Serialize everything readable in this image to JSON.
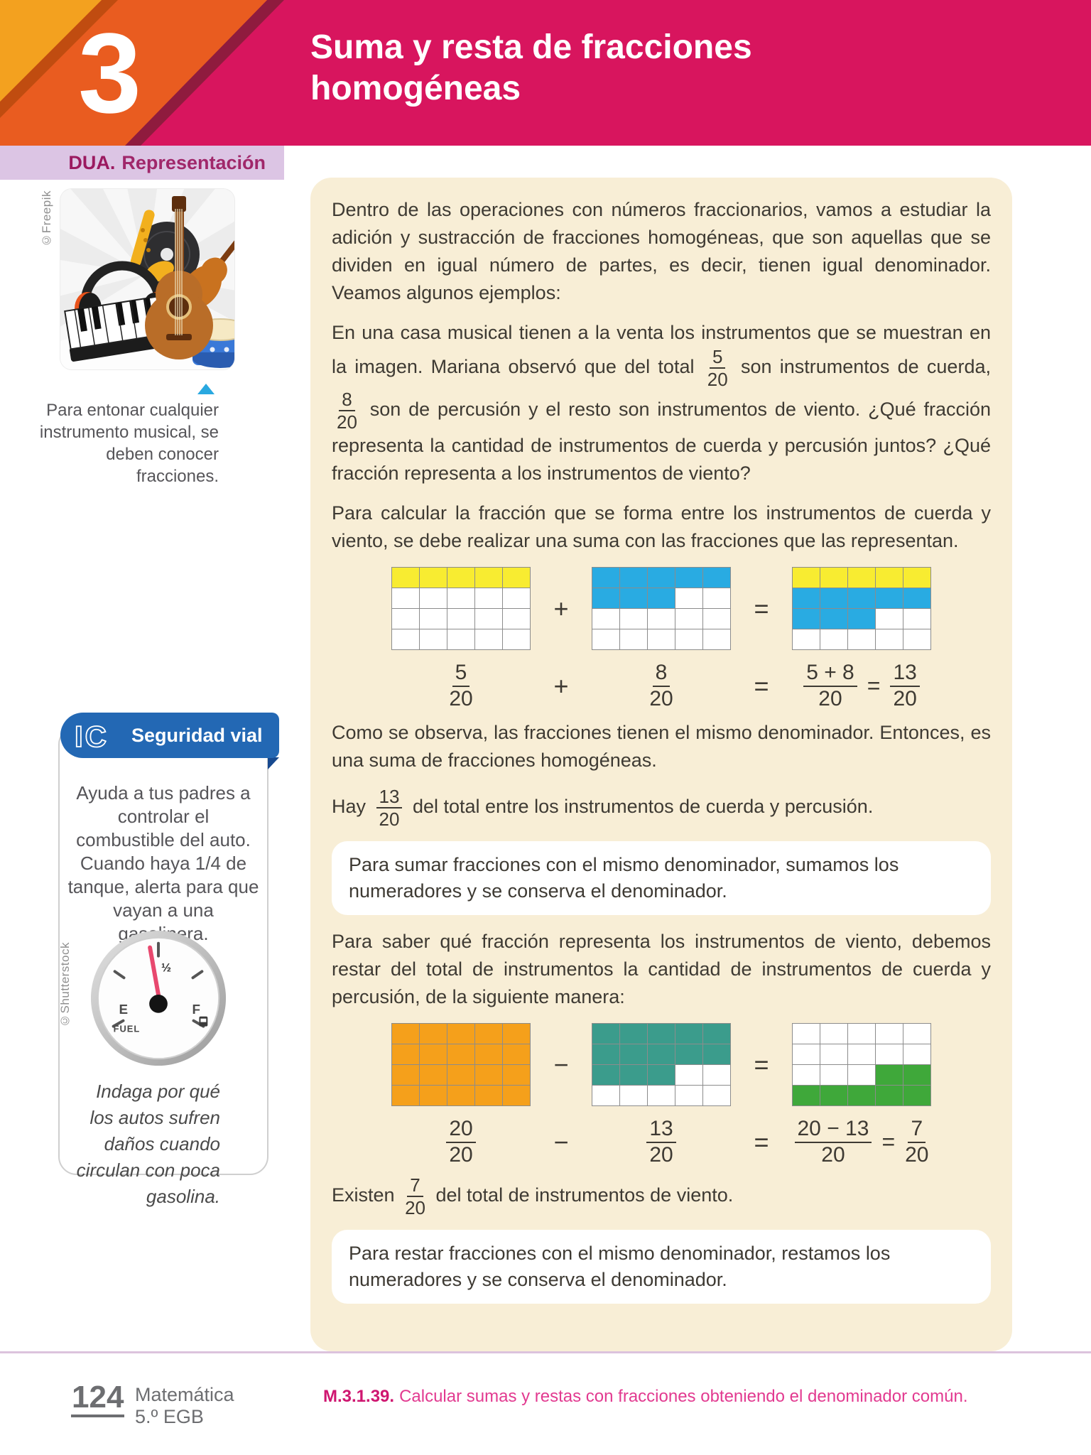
{
  "header": {
    "chapter_number": "3",
    "title_line1": "Suma y resta de fracciones",
    "title_line2": "homogéneas"
  },
  "dua": {
    "label_bold": "DUA.",
    "label_rest": "Representación"
  },
  "sidebar": {
    "image_credit": "©Freepik",
    "image_caption": "Para entonar cualquier instrumento musical, se deben conocer fracciones.",
    "seguridad": {
      "logo": "IC",
      "title": "Seguridad vial",
      "body": "Ayuda a tus padres a controlar el combustible del auto. Cuando haya 1/4 de tanque, alerta para que vayan a una gasolinera.",
      "gauge_credit": "©Shutterstock",
      "gauge": {
        "half_label": "½",
        "empty_label": "E",
        "full_label": "F",
        "fuel_label": "FUEL"
      },
      "prompt": "Indaga por qué los autos sufren daños cuando circulan con poca gasolina."
    }
  },
  "content": {
    "para1": "Dentro de las operaciones con números fraccionarios, vamos a estudiar la adición y sustracción de fracciones homogéneas, que son aquellas que se dividen en igual número de partes, es decir, tienen igual denominador. Veamos algunos ejemplos:",
    "para2_a": "En una casa musical tienen a la venta los instrumentos que se muestran en la imagen. Mariana observó que del total",
    "para2_b": "son instrumentos de cuerda,",
    "para2_c": "son de percusión y el resto son instrumentos de viento. ¿Qué fracción representa la cantidad de instrumentos de cuerda y percusión juntos? ¿Qué fracción representa a los instrumentos de viento?",
    "para3": "Para calcular la fracción que se forma entre los instrumentos de cuerda y viento, se debe realizar una suma con las fracciones que las representan.",
    "para4": "Como se observa, las fracciones tienen el mismo denominador. Entonces, es una suma de fracciones homogéneas.",
    "para5_a": "Hay",
    "para5_b": "del total entre los instrumentos de cuerda y percusión.",
    "note_sum": "Para sumar fracciones con el mismo denominador, sumamos los numeradores y se conserva el denominador.",
    "para6": "Para saber qué fracción representa los instrumentos de viento, debemos restar del total de instrumentos la cantidad de instrumentos de cuerda y percusión, de la siguiente manera:",
    "para7_a": "Existen",
    "para7_b": "del total de instrumentos de viento.",
    "note_diff": "Para restar fracciones con el mismo denominador, restamos los numeradores y se conserva el denominador."
  },
  "fractions": {
    "f5_20": {
      "num": "5",
      "den": "20"
    },
    "f8_20": {
      "num": "8",
      "den": "20"
    },
    "f13_20": {
      "num": "13",
      "den": "20"
    },
    "f20_20": {
      "num": "20",
      "den": "20"
    },
    "f7_20": {
      "num": "7",
      "den": "20"
    },
    "sum_expr": {
      "num": "5 + 8",
      "den": "20"
    },
    "diff_expr": {
      "num": "20 − 13",
      "den": "20"
    }
  },
  "sum_diagram": {
    "operator": "+",
    "equals": "=",
    "grid_first": {
      "rows": [
        "yyyyy",
        "wwwww",
        "wwwww",
        "wwwww"
      ]
    },
    "grid_second": {
      "rows": [
        "bbbbb",
        "bbbww",
        "wwwww",
        "wwwww"
      ]
    },
    "grid_result": {
      "rows": [
        "yyyyy",
        "bbbbb",
        "bbbww",
        "wwwww"
      ]
    }
  },
  "diff_diagram": {
    "operator": "−",
    "equals": "=",
    "grid_first": {
      "rows": [
        "ooooo",
        "ooooo",
        "ooooo",
        "ooooo"
      ]
    },
    "grid_second": {
      "rows": [
        "ttttt",
        "ttttt",
        "tttww",
        "wwwww"
      ]
    },
    "grid_result": {
      "rows": [
        "wwwww",
        "wwwww",
        "wwwgg",
        "ggggg"
      ]
    }
  },
  "diagram_colors": {
    "y": "#f8ec31",
    "b": "#29abe2",
    "o": "#f5a01b",
    "t": "#3b9c8c",
    "g": "#3fa83a",
    "w": "#ffffff"
  },
  "colors": {
    "header_pink": "#d8155e",
    "orange_light": "#f3a11f",
    "orange_dark": "#e95c20",
    "dua_bar": "#dcc5e4",
    "panel_cream": "#f8eed6",
    "ribbon_blue": "#2368b4",
    "needle_red": "#e8486e",
    "footer_magenta": "#cf1670"
  },
  "footer": {
    "page_number": "124",
    "book_line1": "Matemática",
    "book_line2": "5.º EGB",
    "standard_code": "M.3.1.39.",
    "standard_text": "Calcular sumas y restas con fracciones obteniendo el denominador común."
  }
}
